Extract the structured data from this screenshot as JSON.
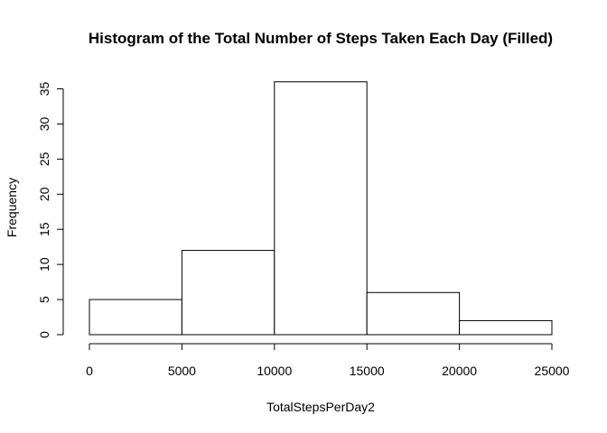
{
  "chart_data": {
    "type": "bar",
    "title": "Histogram of the Total Number of Steps Taken Each Day (Filled)",
    "xlabel": "TotalStepsPerDay2",
    "ylabel": "Frequency",
    "bins": [
      {
        "from": 0,
        "to": 5000,
        "value": 5
      },
      {
        "from": 5000,
        "to": 10000,
        "value": 12
      },
      {
        "from": 10000,
        "to": 15000,
        "value": 36
      },
      {
        "from": 15000,
        "to": 20000,
        "value": 6
      },
      {
        "from": 20000,
        "to": 25000,
        "value": 2
      }
    ],
    "xlim": [
      0,
      25000
    ],
    "ylim": [
      0,
      35
    ],
    "x_ticks": [
      0,
      5000,
      10000,
      15000,
      20000,
      25000
    ],
    "y_ticks": [
      0,
      5,
      10,
      15,
      20,
      25,
      30,
      35
    ],
    "grid": false,
    "bar_fill": "#ffffff",
    "bar_stroke": "#000000"
  }
}
